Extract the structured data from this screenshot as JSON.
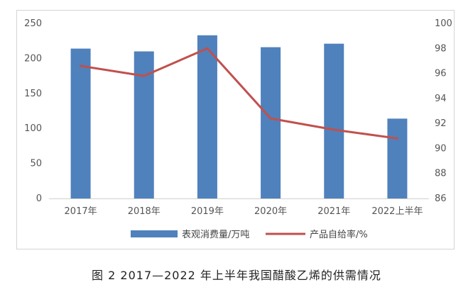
{
  "chart_data": {
    "type": "bar",
    "categories": [
      "2017年",
      "2018年",
      "2019年",
      "2020年",
      "2021年",
      "2022上半年"
    ],
    "series": [
      {
        "name": "表观消费量/万吨",
        "type": "bar",
        "axis": "left",
        "color": "#4f81bd",
        "values": [
          214,
          210,
          233,
          216,
          221,
          114
        ]
      },
      {
        "name": "产品自给率/%",
        "type": "line",
        "axis": "right",
        "color": "#c0504d",
        "values": [
          96.6,
          95.8,
          98.0,
          92.4,
          91.5,
          90.8
        ]
      }
    ],
    "y_left": {
      "min": 0,
      "max": 250,
      "ticks": [
        0,
        50,
        100,
        150,
        200,
        250
      ]
    },
    "y_right": {
      "min": 86,
      "max": 100,
      "ticks": [
        86,
        88,
        90,
        92,
        94,
        96,
        98,
        100
      ]
    },
    "legend_position": "bottom",
    "grid": false
  },
  "caption": "图 2  2017—2022 年上半年我国醋酸乙烯的供需情况"
}
